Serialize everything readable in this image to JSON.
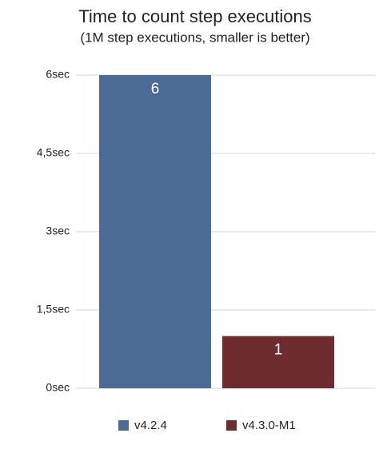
{
  "chart_data": {
    "type": "bar",
    "title": "Time to count step executions",
    "subtitle": "(1M step executions, smaller is better)",
    "categories": [
      null
    ],
    "series": [
      {
        "name": "v4.2.4",
        "color": "#4b6a94",
        "values": [
          6
        ]
      },
      {
        "name": "v4.3.0-M1",
        "color": "#6e2c2e",
        "values": [
          1
        ]
      }
    ],
    "ylim": [
      0,
      6
    ],
    "yticks": [
      {
        "value": 0,
        "label": "0sec"
      },
      {
        "value": 1.5,
        "label": "1,5sec"
      },
      {
        "value": 3,
        "label": "3sec"
      },
      {
        "value": 4.5,
        "label": "4,5sec"
      },
      {
        "value": 6,
        "label": "6sec"
      }
    ],
    "grid": true,
    "legend": "bottom"
  }
}
